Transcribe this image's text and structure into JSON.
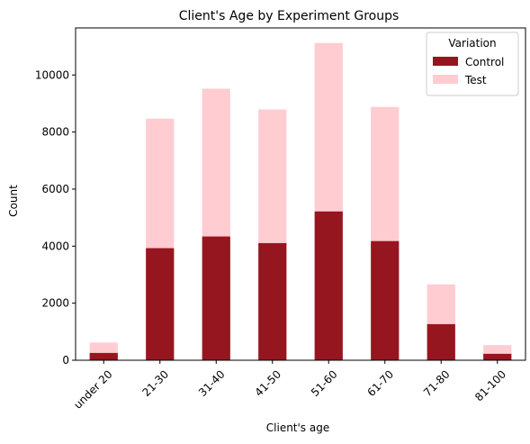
{
  "chart_data": {
    "type": "bar",
    "stacked": true,
    "title": "Client's Age by Experiment Groups",
    "xlabel": "Client's age",
    "ylabel": "Count",
    "categories": [
      "under 20",
      "21-30",
      "31-40",
      "41-50",
      "51-60",
      "61-70",
      "71-80",
      "81-100"
    ],
    "series": [
      {
        "name": "Control",
        "color": "#96161f",
        "values": [
          260,
          3930,
          4340,
          4110,
          5220,
          4180,
          1270,
          230
        ]
      },
      {
        "name": "Test",
        "color": "#ffccd2",
        "values": [
          360,
          4540,
          5180,
          4680,
          5900,
          4700,
          1390,
          300
        ]
      }
    ],
    "ylim": [
      0,
      11650
    ],
    "yticks": [
      0,
      2000,
      4000,
      6000,
      8000,
      10000
    ],
    "legend": {
      "title": "Variation",
      "placement": "top-right"
    },
    "grid": false
  }
}
